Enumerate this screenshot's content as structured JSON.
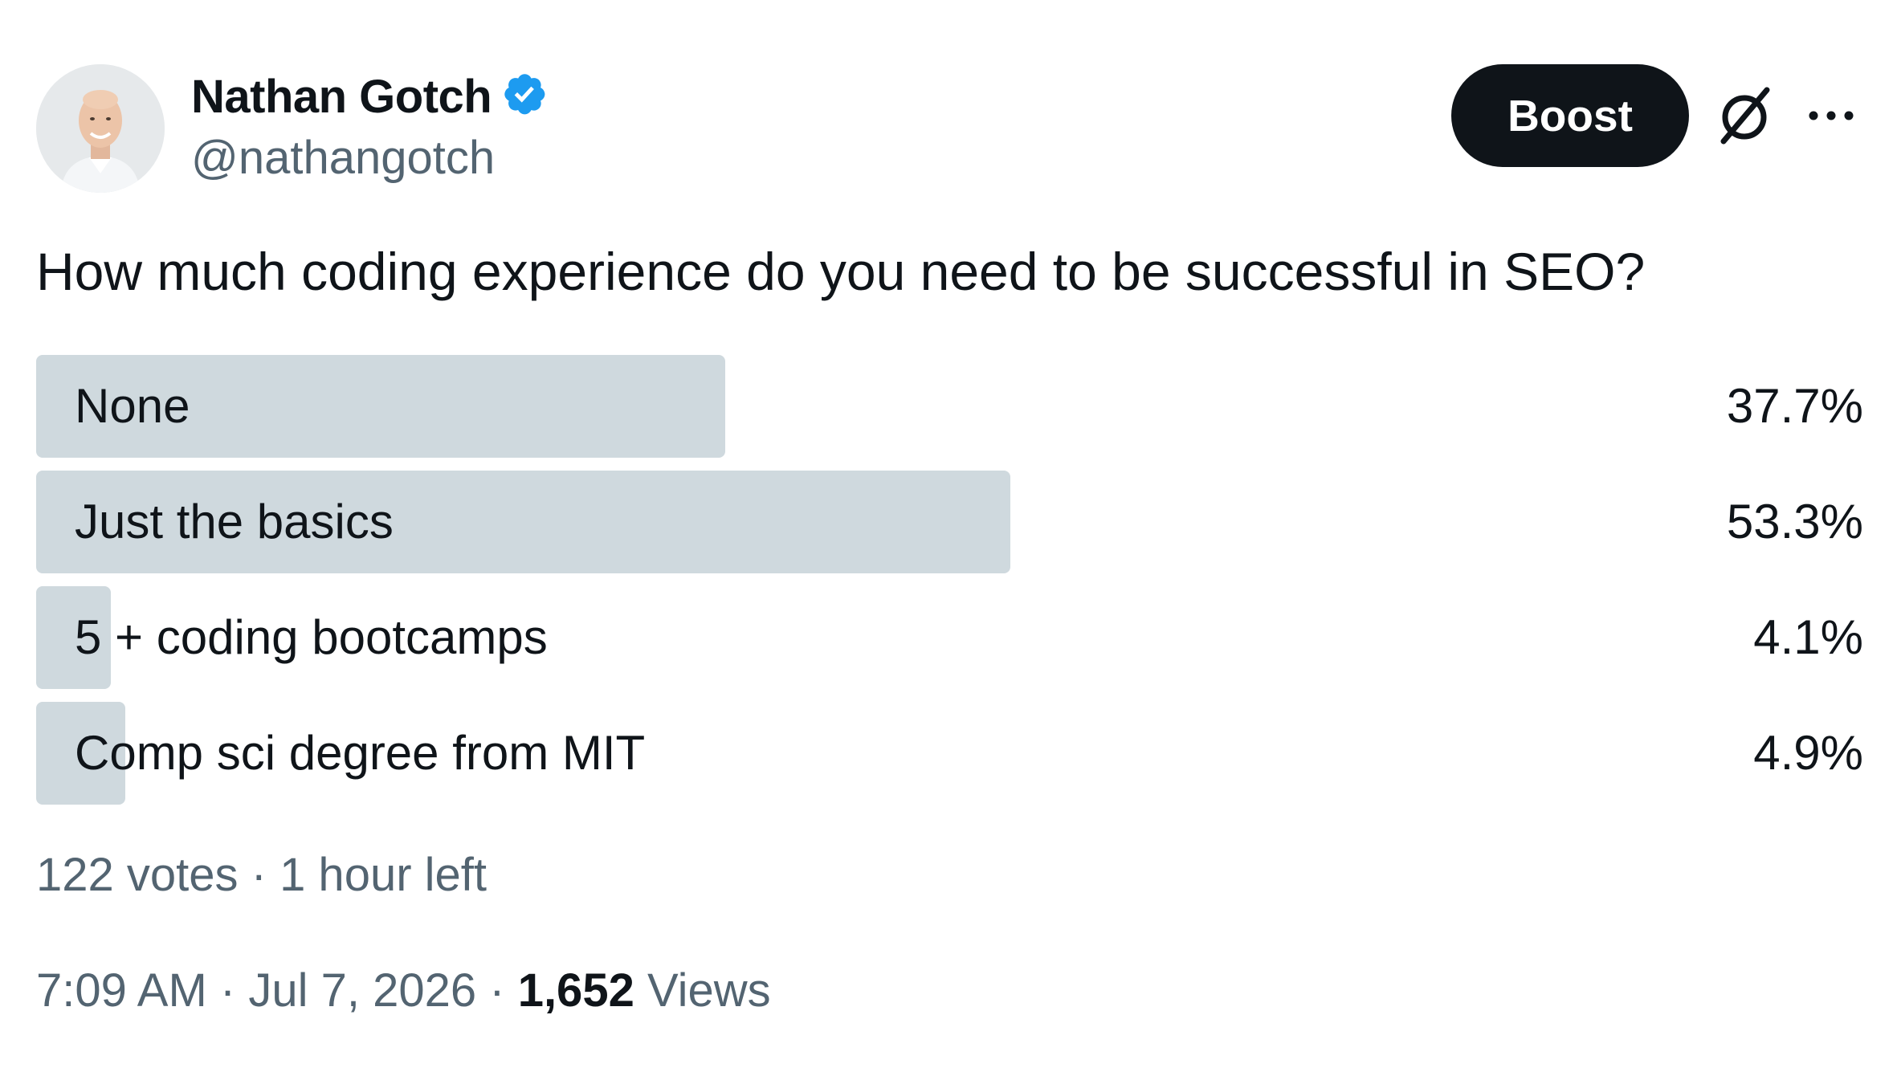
{
  "author": {
    "display_name": "Nathan Gotch",
    "handle": "@nathangotch",
    "verified": true,
    "verified_color": "#1d9bf0"
  },
  "actions": {
    "boost_label": "Boost",
    "grok_icon": "grok-icon",
    "more_icon": "more-icon"
  },
  "post": {
    "question": "How much coding experience do you need to be successful in SEO?"
  },
  "poll": {
    "options": [
      {
        "label": "None",
        "percent_text": "37.7%",
        "percent": 37.7
      },
      {
        "label": "Just the basics",
        "percent_text": "53.3%",
        "percent": 53.3
      },
      {
        "label": "5 + coding bootcamps",
        "percent_text": "4.1%",
        "percent": 4.1
      },
      {
        "label": "Comp sci degree from MIT",
        "percent_text": "4.9%",
        "percent": 4.9
      }
    ],
    "votes": "122 votes",
    "separator": " · ",
    "time_left": "1 hour left",
    "bar_color": "#cfd9de"
  },
  "meta": {
    "time": "7:09 AM",
    "date": "Jul 7, 2026",
    "separator": " · ",
    "views_count": "1,652",
    "views_label": "Views"
  }
}
